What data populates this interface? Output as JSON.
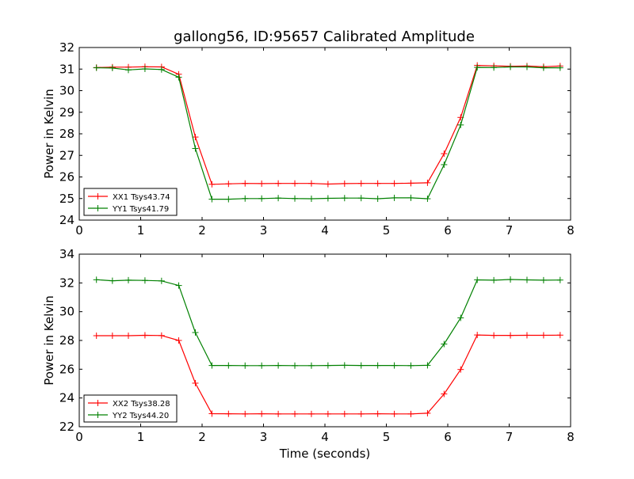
{
  "title": "gallong56, ID:95657 Calibrated Amplitude",
  "chart_data": [
    {
      "type": "line",
      "xlabel": "",
      "ylabel": "Power in Kelvin",
      "xlim": [
        0,
        8
      ],
      "ylim": [
        24,
        32
      ],
      "xticks": [
        "0",
        "1",
        "2",
        "3",
        "4",
        "5",
        "6",
        "7",
        "8"
      ],
      "yticks": [
        "24",
        "25",
        "26",
        "27",
        "28",
        "29",
        "30",
        "31",
        "32"
      ],
      "legend_position": "lower-left",
      "grid": false,
      "x": [
        0.28,
        0.54,
        0.8,
        1.07,
        1.34,
        1.62,
        1.89,
        2.16,
        2.43,
        2.7,
        2.97,
        3.24,
        3.51,
        3.78,
        4.05,
        4.32,
        4.59,
        4.86,
        5.13,
        5.4,
        5.67,
        5.94,
        6.21,
        6.48,
        6.75,
        7.02,
        7.29,
        7.56,
        7.83
      ],
      "series": [
        {
          "name": "XX1 Tsys43.74",
          "color": "#ff0000",
          "values": [
            31.07,
            31.09,
            31.09,
            31.11,
            31.1,
            30.76,
            27.85,
            25.66,
            25.68,
            25.7,
            25.69,
            25.7,
            25.7,
            25.7,
            25.67,
            25.69,
            25.7,
            25.7,
            25.7,
            25.71,
            25.73,
            27.08,
            28.76,
            31.17,
            31.15,
            31.13,
            31.14,
            31.11,
            31.14
          ]
        },
        {
          "name": "YY1 Tsys41.79",
          "color": "#008000",
          "values": [
            31.06,
            31.05,
            30.96,
            31.01,
            30.98,
            30.62,
            27.32,
            24.97,
            24.97,
            25.0,
            25.0,
            25.02,
            25.0,
            24.99,
            25.01,
            25.02,
            25.02,
            24.99,
            25.03,
            25.03,
            24.99,
            26.57,
            28.41,
            31.08,
            31.07,
            31.1,
            31.1,
            31.06,
            31.06
          ]
        }
      ]
    },
    {
      "type": "line",
      "xlabel": "Time (seconds)",
      "ylabel": "Power in Kelvin",
      "xlim": [
        0,
        8
      ],
      "ylim": [
        22,
        34
      ],
      "xticks": [
        "0",
        "1",
        "2",
        "3",
        "4",
        "5",
        "6",
        "7",
        "8"
      ],
      "yticks": [
        "22",
        "24",
        "26",
        "28",
        "30",
        "32",
        "34"
      ],
      "legend_position": "lower-left",
      "grid": false,
      "x": [
        0.28,
        0.54,
        0.8,
        1.07,
        1.34,
        1.62,
        1.89,
        2.16,
        2.43,
        2.7,
        2.97,
        3.24,
        3.51,
        3.78,
        4.05,
        4.32,
        4.59,
        4.86,
        5.13,
        5.4,
        5.67,
        5.94,
        6.21,
        6.48,
        6.75,
        7.02,
        7.29,
        7.56,
        7.83
      ],
      "series": [
        {
          "name": "XX2 Tsys38.28",
          "color": "#ff0000",
          "values": [
            28.33,
            28.33,
            28.33,
            28.36,
            28.34,
            28.0,
            25.03,
            22.91,
            22.9,
            22.89,
            22.9,
            22.89,
            22.89,
            22.89,
            22.89,
            22.89,
            22.89,
            22.9,
            22.89,
            22.89,
            22.94,
            24.28,
            25.98,
            28.38,
            28.35,
            28.35,
            28.36,
            28.36,
            28.37
          ]
        },
        {
          "name": "YY2 Tsys44.20",
          "color": "#008000",
          "values": [
            32.22,
            32.15,
            32.19,
            32.17,
            32.14,
            31.82,
            28.55,
            26.26,
            26.26,
            26.25,
            26.25,
            26.26,
            26.25,
            26.25,
            26.26,
            26.27,
            26.26,
            26.26,
            26.26,
            26.25,
            26.27,
            27.75,
            29.57,
            32.21,
            32.19,
            32.24,
            32.21,
            32.19,
            32.2
          ]
        }
      ]
    }
  ]
}
